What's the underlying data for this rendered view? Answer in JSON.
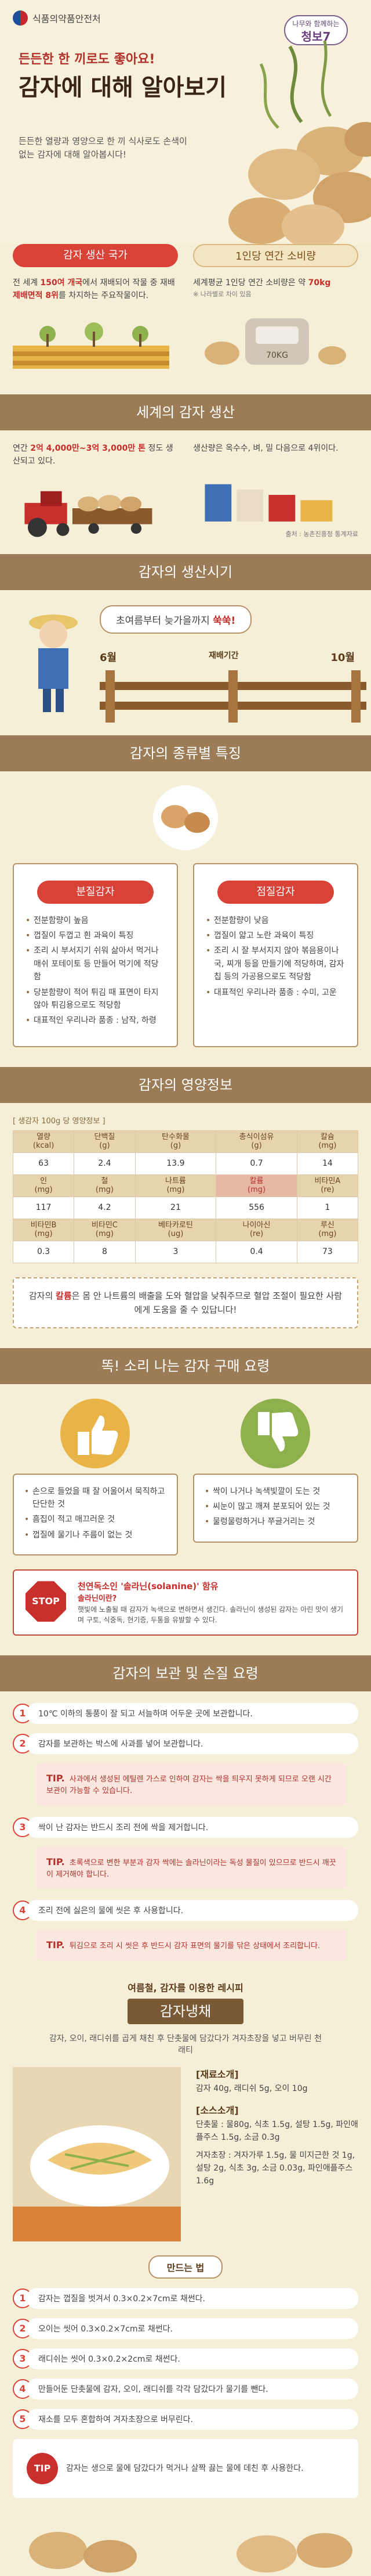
{
  "header": {
    "org": "식품의약품안전처",
    "badge_line1": "나무와 함께하는",
    "badge_main": "청보7"
  },
  "hero": {
    "subtitle": "든든한 한 끼로도 좋아요!",
    "title": "감자에 대해 알아보기",
    "desc": "든든한 열량과 영양으로 한 끼 식사로도 손색이 없는 감자에 대해 알아봅시다!"
  },
  "production": {
    "korea_title": "감자 생산 국가",
    "korea_text_a": "전 세계 ",
    "korea_hl1": "150여 개국",
    "korea_text_b": "에서 재배되어 작물 중 재배 ",
    "korea_hl2": "제배면적 8위",
    "korea_text_c": "를 차지하는 주요작물이다.",
    "consume_title": "1인당 연간 소비량",
    "consume_text": "세계평균 1인당 연간 소비량은 약 ",
    "consume_hl": "70kg",
    "consume_note": "※ 나라별로 차이 있음",
    "scale_label": "70KG",
    "world_head": "세계의 감자 생산",
    "world_text_a": "연간 ",
    "world_hl": "2억 4,000만~3억 3,000만 톤",
    "world_text_b": " 정도 생산되고 있다.",
    "world_text2": "생산량은 옥수수, 벼, 밀 다음으로 4위이다.",
    "source": "출처 : 농촌진흥청 통계자료"
  },
  "season": {
    "head": "감자의 생산시기",
    "bubble_a": "초여름부터 늦가을까지 ",
    "bubble_hl": "쑥쑥!",
    "m1": "6월",
    "m2": "재배기간",
    "m3": "10월"
  },
  "types": {
    "head": "감자의 종류별 특징",
    "powdery_title": "분질감자",
    "powdery": [
      "전분함량이 높음",
      "껍질이 두껍고 흰 과육이 특징",
      "조리 시 부서지기 쉬워 삶아서 먹거나 매쉬 포테이토 등 만들어 먹기에 적당함",
      "당분함량이 적어 튀김 때 표면이 타지 않아 튀김용으로도 적당함",
      "대표적인 우리나라 품종 : 남작, 하령"
    ],
    "waxy_title": "점질감자",
    "waxy": [
      "전분함량이 낮음",
      "껍질이 얇고 노란 과육이 특징",
      "조리 시 잘 부서지지 않아 볶음용이나 국, 찌개 등을 만들기에 적당하며, 감자칩 등의 가공용으로도 적당함",
      "대표적인 우리나라 품종 : 수미, 고운"
    ]
  },
  "nutrition": {
    "head": "감자의 영양정보",
    "caption": "[ 생감자 100g 당 영양정보 ]",
    "rows": [
      {
        "h": [
          "열량\n(kcal)",
          "단백질\n(g)",
          "탄수화물\n(g)",
          "총식이섬유\n(g)",
          "칼슘\n(mg)"
        ],
        "v": [
          "63",
          "2.4",
          "13.9",
          "0.7",
          "14"
        ]
      },
      {
        "h": [
          "인\n(mg)",
          "철\n(mg)",
          "나트륨\n(mg)",
          "칼륨\n(mg)",
          "비타민A\n(re)"
        ],
        "v": [
          "117",
          "4.2",
          "21",
          "556",
          "1"
        ]
      },
      {
        "h": [
          "비타민B\n(mg)",
          "비타민C\n(mg)",
          "베타카로틴\n(ug)",
          "나이아신\n(re)",
          "루신\n(mg)"
        ],
        "v": [
          "0.3",
          "8",
          "3",
          "0.4",
          "73"
        ]
      }
    ],
    "note_a": "감자의 ",
    "note_hl": "칼륨",
    "note_b": "은 몸 안 나트륨의 배출을 도와 혈압을 낮춰주므로 혈압 조절이 필요한 사람에게 도움을 줄 수 있답니다!"
  },
  "buying": {
    "head": "똑! 소리 나는 감자 구매 요령",
    "good": [
      "손으로 들었을 때 잘 어울어서 묵직하고 단단한 것",
      "흠집이 적고 매끄러운 것",
      "껍질에 물기나 주름이 없는 것"
    ],
    "bad": [
      "싹이 나거나 녹색빛깔이 도는 것",
      "씨눈이 많고 깨져 분포되어 있는 것",
      "물렁물렁하거나 쭈글거리는 것"
    ],
    "stop_label": "STOP",
    "stop_title": "천연독소인 '솔라닌(solanine)' 함유",
    "stop_sub": "솔라닌이란?",
    "stop_text": "햇빛에 노출될 때 감자가 녹색으로 변하면서 생긴다. 솔라닌이 생성된 감자는 아린 맛이 생기며 구토, 식중독, 현기증, 두통을 유발할 수 있다."
  },
  "storage": {
    "head": "감자의 보관 및 손질 요령",
    "s1": "10℃ 이하의 통풍이 잘 되고 서늘하며 어두운 곳에 보관합니다.",
    "s2": "감자를 보관하는 박스에 사과를 넣어 보관합니다.",
    "tip2": "사과에서 생성된 에틸렌 가스로 인하여 감자는 싹을 틔우지 못하게 되므로 오랜 시간 보관이 가능할 수 있습니다.",
    "s3": "싹이 난 감자는 반드시 조리 전에 싹을 제거합니다.",
    "tip3": "초록색으로 변한 부분과 감자 싹에는 솔라닌이라는 독성 물질이 있으므로 반드시 깨끗이 제거해야 합니다.",
    "s4": "조리 전에 싫은의 물에 씻은 후 사용합니다.",
    "tip4": "튀김으로 조리 시 씻은 후 반드시 감자 표면의 물기를 닦은 상태에서 조리합니다.",
    "tip_label": "TIP."
  },
  "recipe": {
    "pre": "여름철, 감자를 이용한 레시피",
    "title": "감자냉채",
    "desc": "감자, 오이, 래디쉬를 곱게 채친 후 단촛물에 담갔다가 겨자초장을 넣고 버무린 천래티",
    "ing_head": "[재료소개]",
    "ing": "감자 40g, 래디쉬 5g, 오이 10g",
    "sauce_head": "[소스소개]",
    "sauce1": "단촛물 : 물80g, 식초 1.5g, 설탕 1.5g, 파인애플주스 1.5g, 소금 0.3g",
    "sauce2": "겨자초장 : 겨자가루 1.5g, 물 미지근한 것 1g, 설탕 2g, 식초 3g, 소금 0.03g, 파인애플주스 1.6g",
    "how_head": "만드는 법",
    "steps": [
      "감자는 껍질을 벗겨서 0.3×0.2×7cm로 채썬다.",
      "오이는 씻어 0.3×0.2×7cm로 채썬다.",
      "래디쉬는 씻어 0.3×0.2×2cm로 채썬다.",
      "만들어둔 단촛물에 감자, 오이, 래디쉬를 각각 담갔다가 물기를 뺀다.",
      "재소를 모두 혼합하여 겨자초장으로 버무린다."
    ],
    "end_tip_label": "TIP",
    "end_tip": "감자는 생으로 물에 담갔다가 먹거나 살짝 끓는 물에 데친 후 사용한다."
  }
}
